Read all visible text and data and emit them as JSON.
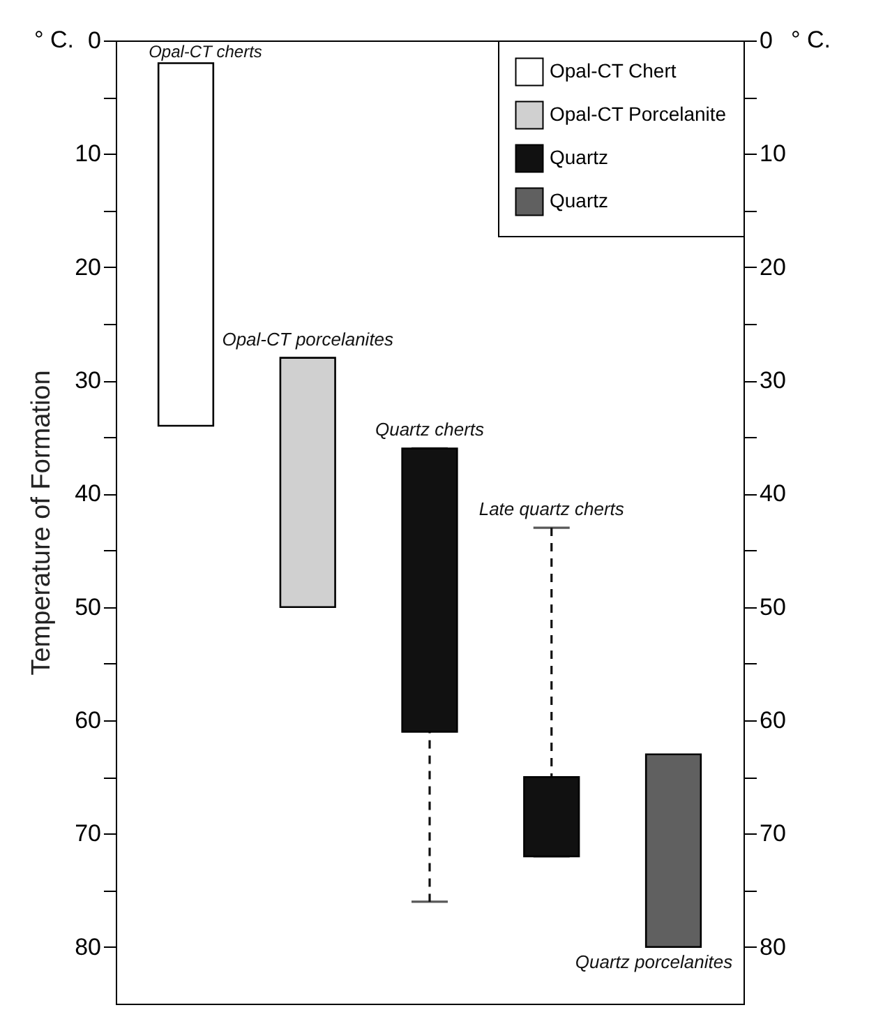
{
  "chart_data": {
    "type": "bar",
    "ylabel": "Temperature of Formation",
    "categories": [
      null,
      null,
      null,
      null,
      null
    ],
    "base": [
      2,
      28,
      36,
      65,
      63
    ],
    "values": [
      32,
      22,
      25,
      7,
      17
    ],
    "colors": [
      "#ffffff",
      "#d0d0d0",
      "#111111",
      "#111111",
      "#606060"
    ],
    "errors": [
      null,
      null,
      [
        36,
        76
      ],
      [
        43,
        72
      ],
      null
    ],
    "ylim": [
      85,
      0
    ],
    "yticks": [
      0,
      {
        "value": 5,
        "label": null
      },
      10,
      {
        "value": 15,
        "label": null
      },
      20,
      {
        "value": 25,
        "label": null
      },
      30,
      {
        "value": 35,
        "label": null
      },
      40,
      {
        "value": 45,
        "label": null
      },
      50,
      {
        "value": 55,
        "label": null
      },
      60,
      {
        "value": 65,
        "label": null
      },
      70,
      {
        "value": 75,
        "label": null
      },
      80
    ],
    "y2lim": [
      85,
      0
    ],
    "y2ticks": [
      0,
      {
        "value": 5,
        "label": null
      },
      10,
      {
        "value": 15,
        "label": null
      },
      20,
      {
        "value": 25,
        "label": null
      },
      30,
      {
        "value": 35,
        "label": null
      },
      40,
      {
        "value": 45,
        "label": null
      },
      50,
      {
        "value": 55,
        "label": null
      },
      60,
      {
        "value": 65,
        "label": null
      },
      70,
      {
        "value": 75,
        "label": null
      },
      80
    ],
    "annotations": [
      "° C.",
      "° C.",
      "Opal-CT Chert",
      "Opal-CT Porcelanite",
      "Quartz",
      "Quartz",
      {
        "text": "Opal-CT cherts",
        "y": 2
      },
      {
        "text": "Opal-CT porcelanites",
        "y": 28
      },
      {
        "text": "Quartz cherts",
        "y": 36
      },
      {
        "text": "Late quartz cherts",
        "y": 43
      },
      {
        "text": "Quartz porcelanites",
        "y": 80
      }
    ]
  }
}
